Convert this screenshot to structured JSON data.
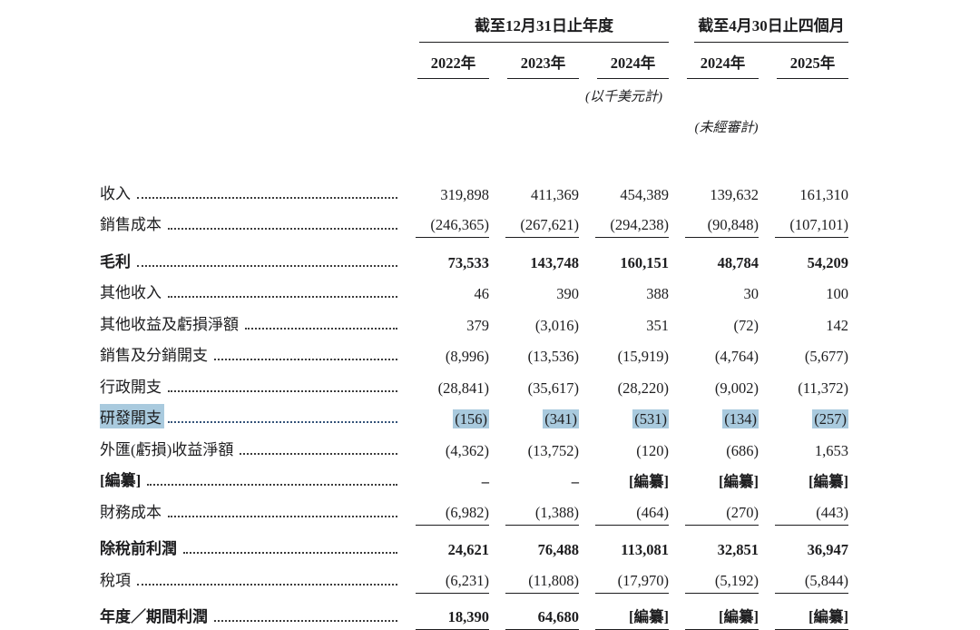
{
  "table": {
    "highlight_color": "#a9cade",
    "col_groups": [
      {
        "label": "截至12月31日止年度",
        "cols": [
          "2022年",
          "2023年",
          "2024年"
        ]
      },
      {
        "label": "截至4月30日止四個月",
        "cols": [
          "2024年",
          "2025年"
        ]
      }
    ],
    "unit_note": "(以千美元計)",
    "unaudited_note": "(未經審計)",
    "rows": [
      {
        "label": "收入",
        "values": [
          "319,898",
          "411,369",
          "454,389",
          "139,632",
          "161,310"
        ]
      },
      {
        "label": "銷售成本",
        "values": [
          "(246,365)",
          "(267,621)",
          "(294,238)",
          "(90,848)",
          "(107,101)"
        ],
        "rule_below": true
      },
      {
        "label": "毛利",
        "values": [
          "73,533",
          "143,748",
          "160,151",
          "48,784",
          "54,209"
        ],
        "bold": true
      },
      {
        "label": "其他收入",
        "values": [
          "46",
          "390",
          "388",
          "30",
          "100"
        ]
      },
      {
        "label": "其他收益及虧損淨額",
        "values": [
          "379",
          "(3,016)",
          "351",
          "(72)",
          "142"
        ]
      },
      {
        "label": "銷售及分銷開支",
        "values": [
          "(8,996)",
          "(13,536)",
          "(15,919)",
          "(4,764)",
          "(5,677)"
        ]
      },
      {
        "label": "行政開支",
        "values": [
          "(28,841)",
          "(35,617)",
          "(28,220)",
          "(9,002)",
          "(11,372)"
        ]
      },
      {
        "label": "研發開支",
        "values": [
          "(156)",
          "(341)",
          "(531)",
          "(134)",
          "(257)"
        ],
        "highlight": true
      },
      {
        "label": "外匯(虧損)收益淨額",
        "values": [
          "(4,362)",
          "(13,752)",
          "(120)",
          "(686)",
          "1,653"
        ]
      },
      {
        "label": "[編纂]",
        "values": [
          "–",
          "–",
          "[編纂]",
          "[編纂]",
          "[編纂]"
        ],
        "bold": true
      },
      {
        "label": "財務成本",
        "values": [
          "(6,982)",
          "(1,388)",
          "(464)",
          "(270)",
          "(443)"
        ],
        "rule_below": true
      },
      {
        "label": "除稅前利潤",
        "values": [
          "24,621",
          "76,488",
          "113,081",
          "32,851",
          "36,947"
        ],
        "bold": true
      },
      {
        "label": "稅項",
        "values": [
          "(6,231)",
          "(11,808)",
          "(17,970)",
          "(5,192)",
          "(5,844)"
        ],
        "rule_below": true
      },
      {
        "label": "年度／期間利潤",
        "values": [
          "18,390",
          "64,680",
          "[編纂]",
          "[編纂]",
          "[編纂]"
        ],
        "bold": true,
        "rule_below": true
      }
    ]
  }
}
